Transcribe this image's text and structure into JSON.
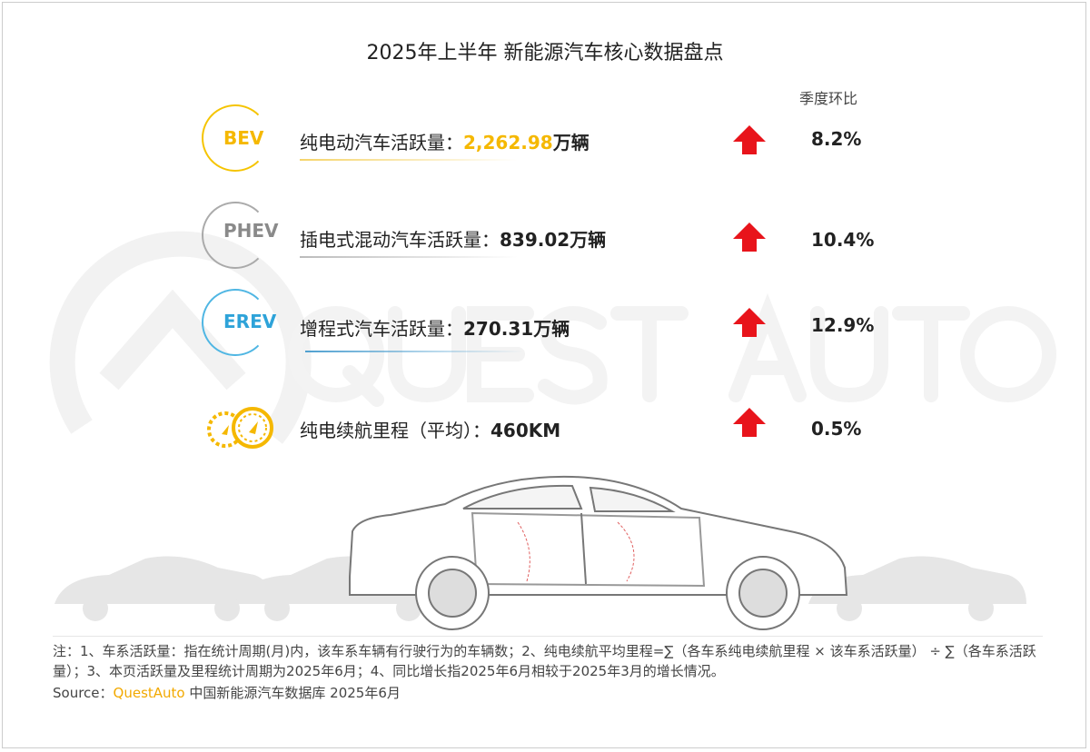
{
  "title": "2025年上半年 新能源汽车核心数据盘点",
  "column_header": "季度环比",
  "watermark": "QUEST AUTO",
  "colors": {
    "bev": "#f5b800",
    "phev": "#9a9a9a",
    "erev": "#2ea3d9",
    "arrow": "#e8141b",
    "highlight": "#f5b800"
  },
  "rows": [
    {
      "badge": "BEV",
      "label": "纯电动汽车活跃量：",
      "value": "2,262.98",
      "unit": "万辆",
      "trend": "up-arrow",
      "change": "8.2%"
    },
    {
      "badge": "PHEV",
      "label": "插电式混动汽车活跃量：",
      "value": "839.02",
      "unit": "万辆",
      "trend": "up-arrow",
      "change": "10.4%"
    },
    {
      "badge": "EREV",
      "label": "增程式汽车活跃量：",
      "value": "270.31",
      "unit": "万辆",
      "trend": "up-arrow",
      "change": "12.9%"
    },
    {
      "badge": "speedometer-icon",
      "label": "纯电续航里程（平均）：",
      "value": "460KM",
      "unit": "",
      "trend": "up-arrow",
      "change": "0.5%"
    }
  ],
  "notes": "注：1、车系活跃量：指在统计周期(月)内，该车系车辆有行驶行为的车辆数；2、纯电续航平均里程=∑（各车系纯电续航里程 × 该车系活跃量） ÷ ∑（各车系活跃量）；3、本页活跃量及里程统计周期为2025年6月；4、同比增长指2025年6月相较于2025年3月的增长情况。",
  "source": {
    "prefix": "Source：",
    "brand": "QuestAuto",
    "suffix": " 中国新能源汽车数据库 2025年6月"
  }
}
